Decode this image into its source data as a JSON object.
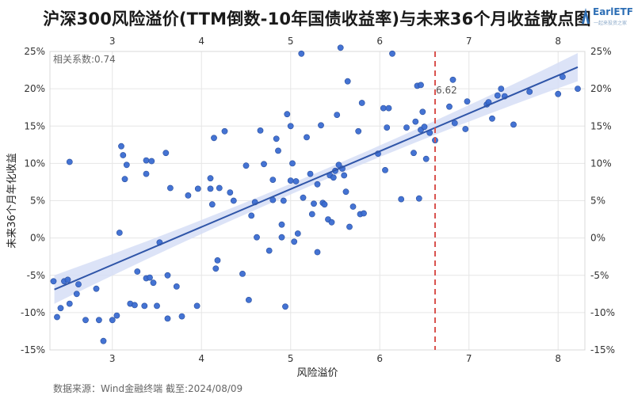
{
  "page": {
    "title": "沪深300风险溢价(TTM倒数-10年国债收益率)与未来36个月收益散点图",
    "source": "数据来源：Wind金融终端 截至:2024/08/09",
    "logo": {
      "name": "EarlETF",
      "sub": "一起来投资之家"
    }
  },
  "chart_data": {
    "type": "scatter",
    "title": "沪深300风险溢价(TTM倒数-10年国债收益率)与未来36个月收益散点图",
    "xlabel": "风险溢价",
    "ylabel": "未来36个月年化收益",
    "xlim": [
      2.3,
      8.3
    ],
    "ylim": [
      -15,
      25
    ],
    "x_ticks": [
      3,
      4,
      5,
      6,
      7,
      8
    ],
    "y_ticks": [
      -15,
      -10,
      -5,
      0,
      5,
      10,
      15,
      20,
      25
    ],
    "y_tick_labels": [
      "-15%",
      "-10%",
      "-5%",
      "0%",
      "5%",
      "10%",
      "15%",
      "20%",
      "25%"
    ],
    "grid": true,
    "correlation_label": "相关系数:0.74",
    "marker_label": "6.62",
    "vline_x": 6.62,
    "regression": {
      "x": [
        2.35,
        8.22
      ],
      "y": [
        -6.9,
        22.9
      ]
    },
    "colors": {
      "points": "#3a6bd1",
      "line": "#2f55a8",
      "band": "#d6def6",
      "vline": "#d9534f"
    },
    "points": [
      [
        2.34,
        -5.8
      ],
      [
        2.38,
        -10.6
      ],
      [
        2.42,
        -9.4
      ],
      [
        2.46,
        -5.8
      ],
      [
        2.5,
        -5.6
      ],
      [
        2.52,
        10.2
      ],
      [
        2.52,
        -8.8
      ],
      [
        2.6,
        -7.5
      ],
      [
        2.62,
        -6.2
      ],
      [
        2.7,
        -11.0
      ],
      [
        2.82,
        -6.8
      ],
      [
        2.85,
        -11.0
      ],
      [
        2.9,
        -13.8
      ],
      [
        3.0,
        -11.0
      ],
      [
        3.05,
        -10.4
      ],
      [
        3.08,
        0.7
      ],
      [
        3.1,
        12.3
      ],
      [
        3.12,
        11.1
      ],
      [
        3.14,
        7.9
      ],
      [
        3.16,
        9.8
      ],
      [
        3.2,
        -8.8
      ],
      [
        3.25,
        -9.0
      ],
      [
        3.28,
        -4.5
      ],
      [
        3.36,
        -9.1
      ],
      [
        3.38,
        10.4
      ],
      [
        3.38,
        8.6
      ],
      [
        3.38,
        -5.4
      ],
      [
        3.42,
        -5.3
      ],
      [
        3.44,
        10.3
      ],
      [
        3.46,
        -6.0
      ],
      [
        3.5,
        -9.1
      ],
      [
        3.53,
        -0.6
      ],
      [
        3.6,
        11.4
      ],
      [
        3.62,
        -5.0
      ],
      [
        3.62,
        -10.8
      ],
      [
        3.65,
        6.7
      ],
      [
        3.72,
        -6.5
      ],
      [
        3.78,
        -10.5
      ],
      [
        3.85,
        5.7
      ],
      [
        3.95,
        -9.1
      ],
      [
        3.96,
        6.6
      ],
      [
        4.1,
        6.6
      ],
      [
        4.1,
        8.0
      ],
      [
        4.12,
        4.5
      ],
      [
        4.14,
        13.4
      ],
      [
        4.16,
        -4.1
      ],
      [
        4.18,
        -3.0
      ],
      [
        4.2,
        6.7
      ],
      [
        4.26,
        14.3
      ],
      [
        4.32,
        6.1
      ],
      [
        4.36,
        5.0
      ],
      [
        4.46,
        -4.8
      ],
      [
        4.5,
        9.7
      ],
      [
        4.53,
        -8.3
      ],
      [
        4.56,
        3.0
      ],
      [
        4.6,
        4.8
      ],
      [
        4.62,
        0.1
      ],
      [
        4.66,
        14.4
      ],
      [
        4.7,
        9.9
      ],
      [
        4.76,
        -1.7
      ],
      [
        4.8,
        7.8
      ],
      [
        4.8,
        5.1
      ],
      [
        4.84,
        13.3
      ],
      [
        4.86,
        11.7
      ],
      [
        4.9,
        1.8
      ],
      [
        4.9,
        0.1
      ],
      [
        4.92,
        5.0
      ],
      [
        4.94,
        -9.2
      ],
      [
        4.96,
        16.6
      ],
      [
        5.0,
        7.7
      ],
      [
        5.0,
        15.0
      ],
      [
        5.02,
        10.0
      ],
      [
        5.04,
        -0.5
      ],
      [
        5.06,
        7.6
      ],
      [
        5.08,
        0.6
      ],
      [
        5.12,
        24.7
      ],
      [
        5.14,
        5.4
      ],
      [
        5.18,
        13.5
      ],
      [
        5.22,
        8.6
      ],
      [
        5.24,
        3.2
      ],
      [
        5.26,
        4.6
      ],
      [
        5.3,
        -1.9
      ],
      [
        5.3,
        7.2
      ],
      [
        5.34,
        15.1
      ],
      [
        5.36,
        4.7
      ],
      [
        5.38,
        4.5
      ],
      [
        5.42,
        2.5
      ],
      [
        5.44,
        8.4
      ],
      [
        5.46,
        2.1
      ],
      [
        5.48,
        8.1
      ],
      [
        5.5,
        9.0
      ],
      [
        5.52,
        16.5
      ],
      [
        5.54,
        9.8
      ],
      [
        5.56,
        25.5
      ],
      [
        5.58,
        9.3
      ],
      [
        5.6,
        8.4
      ],
      [
        5.62,
        6.2
      ],
      [
        5.64,
        21.0
      ],
      [
        5.66,
        1.5
      ],
      [
        5.7,
        4.2
      ],
      [
        5.76,
        14.3
      ],
      [
        5.78,
        3.2
      ],
      [
        5.8,
        18.1
      ],
      [
        5.82,
        3.3
      ],
      [
        5.98,
        11.3
      ],
      [
        6.04,
        17.4
      ],
      [
        6.06,
        9.1
      ],
      [
        6.08,
        14.8
      ],
      [
        6.1,
        17.4
      ],
      [
        6.14,
        24.7
      ],
      [
        6.24,
        5.2
      ],
      [
        6.3,
        14.8
      ],
      [
        6.38,
        11.4
      ],
      [
        6.4,
        15.6
      ],
      [
        6.42,
        20.4
      ],
      [
        6.44,
        5.3
      ],
      [
        6.46,
        14.5
      ],
      [
        6.46,
        20.5
      ],
      [
        6.48,
        16.9
      ],
      [
        6.5,
        14.9
      ],
      [
        6.52,
        10.6
      ],
      [
        6.56,
        14.1
      ],
      [
        6.62,
        13.1
      ],
      [
        6.78,
        17.6
      ],
      [
        6.82,
        21.2
      ],
      [
        6.84,
        15.4
      ],
      [
        6.96,
        14.6
      ],
      [
        6.98,
        18.3
      ],
      [
        7.2,
        17.9
      ],
      [
        7.22,
        18.2
      ],
      [
        7.26,
        16.0
      ],
      [
        7.32,
        19.1
      ],
      [
        7.36,
        20.0
      ],
      [
        7.4,
        19.0
      ],
      [
        7.5,
        15.2
      ],
      [
        7.68,
        19.6
      ],
      [
        8.0,
        19.3
      ],
      [
        8.05,
        21.6
      ],
      [
        8.22,
        20.0
      ]
    ]
  }
}
